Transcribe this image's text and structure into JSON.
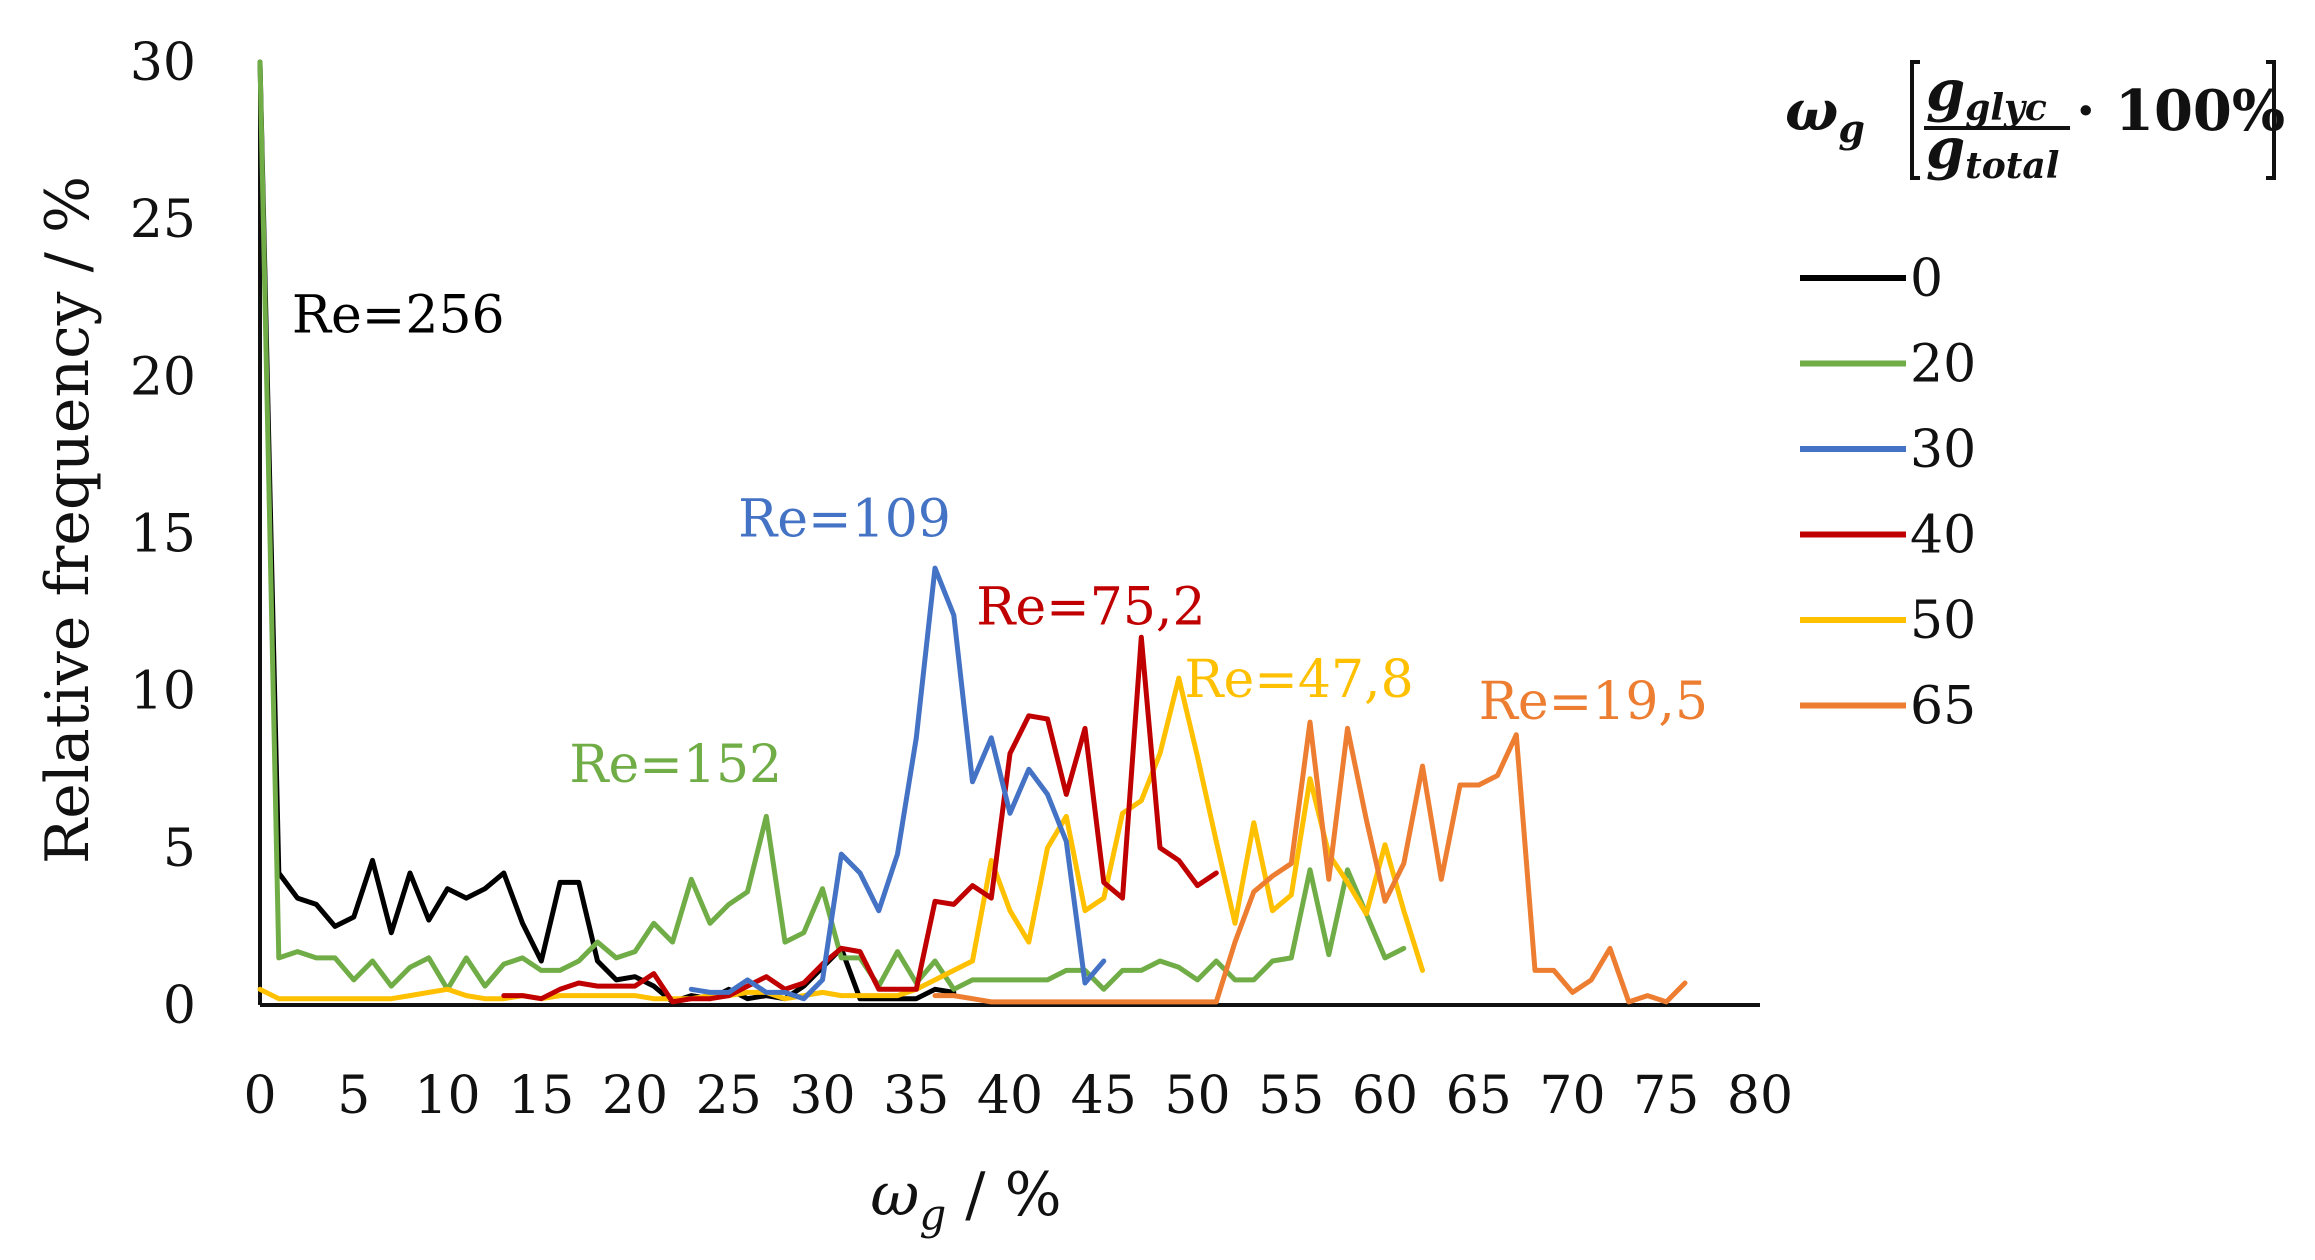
{
  "chart_data": {
    "type": "line",
    "xlabel_main": "ω",
    "xlabel_sub": "g",
    "xlabel_unit": " / %",
    "ylabel": "Relative frequency / %",
    "xlim": [
      0,
      80
    ],
    "ylim": [
      0,
      30
    ],
    "x_ticks": [
      0,
      5,
      10,
      15,
      20,
      25,
      30,
      35,
      40,
      45,
      50,
      55,
      60,
      65,
      70,
      75,
      80
    ],
    "y_ticks": [
      0,
      5,
      10,
      15,
      20,
      25,
      30
    ],
    "legend_title": {
      "symbol": "ω",
      "symbol_sub": "g",
      "numerator": "g",
      "numerator_sub": "glyc",
      "denominator": "g",
      "denominator_sub": "total",
      "multiplier": "· 100%"
    },
    "series": [
      {
        "name": "0",
        "color": "#000000",
        "x": [
          0,
          1,
          2,
          3,
          4,
          5,
          6,
          7,
          8,
          9,
          10,
          11,
          12,
          13,
          14,
          15,
          16,
          17,
          18,
          19,
          20,
          21,
          22,
          23,
          24,
          25,
          26,
          27,
          28,
          29,
          30,
          31,
          32,
          33,
          34,
          35,
          36,
          37
        ],
        "values": [
          30,
          4.2,
          3.4,
          3.2,
          2.5,
          2.8,
          4.6,
          2.3,
          4.2,
          2.7,
          3.7,
          3.4,
          3.7,
          4.2,
          2.6,
          1.4,
          3.9,
          3.9,
          1.4,
          0.8,
          0.9,
          0.6,
          0.1,
          0.3,
          0.2,
          0.5,
          0.2,
          0.3,
          0.2,
          0.6,
          1.2,
          1.8,
          0.2,
          0.2,
          0.2,
          0.2,
          0.5,
          0.4
        ]
      },
      {
        "name": "20",
        "color": "#70AD47",
        "x": [
          0,
          1,
          2,
          3,
          4,
          5,
          6,
          7,
          8,
          9,
          10,
          11,
          12,
          13,
          14,
          15,
          16,
          17,
          18,
          19,
          20,
          21,
          22,
          23,
          24,
          25,
          26,
          27,
          28,
          29,
          30,
          31,
          32,
          33,
          34,
          35,
          36,
          37,
          38,
          39,
          40,
          41,
          42,
          43,
          44,
          45,
          46,
          47,
          48,
          49,
          50,
          51,
          52,
          53,
          54,
          55,
          56,
          57,
          58,
          59,
          60,
          61
        ],
        "values": [
          30,
          1.5,
          1.7,
          1.5,
          1.5,
          0.8,
          1.4,
          0.6,
          1.2,
          1.5,
          0.5,
          1.5,
          0.6,
          1.3,
          1.5,
          1.1,
          1.1,
          1.4,
          2.0,
          1.5,
          1.7,
          2.6,
          2.0,
          4.0,
          2.6,
          3.2,
          3.6,
          6.0,
          2.0,
          2.3,
          3.7,
          1.5,
          1.5,
          0.6,
          1.7,
          0.7,
          1.4,
          0.5,
          0.8,
          0.8,
          0.8,
          0.8,
          0.8,
          1.1,
          1.1,
          0.5,
          1.1,
          1.1,
          1.4,
          1.2,
          0.8,
          1.4,
          0.8,
          0.8,
          1.4,
          1.5,
          4.3,
          1.6,
          4.3,
          2.9,
          1.5,
          1.8
        ]
      },
      {
        "name": "30",
        "color": "#4472C4",
        "x": [
          23,
          24,
          25,
          26,
          27,
          28,
          29,
          30,
          31,
          32,
          33,
          34,
          35,
          36,
          37,
          38,
          39,
          40,
          41,
          42,
          43,
          44,
          45
        ],
        "values": [
          0.5,
          0.4,
          0.4,
          0.8,
          0.4,
          0.4,
          0.2,
          0.8,
          4.8,
          4.2,
          3.0,
          4.8,
          8.5,
          13.9,
          12.4,
          7.1,
          8.5,
          6.1,
          7.5,
          6.7,
          5.2,
          0.7,
          1.4
        ]
      },
      {
        "name": "40",
        "color": "#C00000",
        "x": [
          13,
          14,
          15,
          16,
          17,
          18,
          19,
          20,
          21,
          22,
          23,
          24,
          25,
          26,
          27,
          28,
          29,
          30,
          31,
          32,
          33,
          34,
          35,
          36,
          37,
          38,
          39,
          40,
          41,
          42,
          43,
          44,
          45,
          46,
          47,
          48,
          49,
          50,
          51
        ],
        "values": [
          0.3,
          0.3,
          0.2,
          0.5,
          0.7,
          0.6,
          0.6,
          0.6,
          1.0,
          0.1,
          0.2,
          0.2,
          0.3,
          0.6,
          0.9,
          0.5,
          0.7,
          1.3,
          1.8,
          1.7,
          0.5,
          0.5,
          0.5,
          3.3,
          3.2,
          3.8,
          3.4,
          8.0,
          9.2,
          9.1,
          6.7,
          8.8,
          3.9,
          3.4,
          11.7,
          5.0,
          4.6,
          3.8,
          4.2
        ]
      },
      {
        "name": "50",
        "color": "#FFC000",
        "x": [
          0,
          1,
          2,
          3,
          4,
          5,
          6,
          7,
          8,
          9,
          10,
          11,
          12,
          13,
          14,
          15,
          16,
          17,
          18,
          19,
          20,
          21,
          22,
          23,
          24,
          25,
          26,
          27,
          28,
          29,
          30,
          31,
          32,
          33,
          34,
          35,
          36,
          37,
          38,
          39,
          40,
          41,
          42,
          43,
          44,
          45,
          46,
          47,
          48,
          49,
          50,
          51,
          52,
          53,
          54,
          55,
          56,
          57,
          58,
          59,
          60,
          61,
          62
        ],
        "values": [
          0.5,
          0.2,
          0.2,
          0.2,
          0.2,
          0.2,
          0.2,
          0.2,
          0.3,
          0.4,
          0.5,
          0.3,
          0.2,
          0.2,
          0.3,
          0.2,
          0.3,
          0.3,
          0.3,
          0.3,
          0.3,
          0.2,
          0.2,
          0.2,
          0.3,
          0.3,
          0.4,
          0.4,
          0.2,
          0.3,
          0.4,
          0.3,
          0.3,
          0.3,
          0.3,
          0.5,
          0.8,
          1.1,
          1.4,
          4.6,
          3.0,
          2.0,
          5.0,
          6.0,
          3.0,
          3.4,
          6.1,
          6.5,
          8.0,
          10.4,
          7.9,
          5.2,
          2.6,
          5.8,
          3.0,
          3.5,
          7.2,
          4.8,
          3.9,
          2.9,
          5.1,
          3.0,
          1.1
        ]
      },
      {
        "name": "65",
        "color": "#ED7D31",
        "x": [
          36,
          37,
          38,
          39,
          40,
          41,
          42,
          43,
          44,
          45,
          46,
          47,
          48,
          49,
          50,
          51,
          52,
          53,
          54,
          55,
          56,
          57,
          58,
          59,
          60,
          61,
          62,
          63,
          64,
          65,
          66,
          67,
          68,
          69,
          70,
          71,
          72,
          73,
          74,
          75,
          76
        ],
        "values": [
          0.3,
          0.3,
          0.2,
          0.1,
          0.1,
          0.1,
          0.1,
          0.1,
          0.1,
          0.1,
          0.1,
          0.1,
          0.1,
          0.1,
          0.1,
          0.1,
          2.0,
          3.6,
          4.1,
          4.5,
          9.0,
          4.0,
          8.8,
          5.9,
          3.3,
          4.5,
          7.6,
          4.0,
          7.0,
          7.0,
          7.3,
          8.6,
          1.1,
          1.1,
          0.4,
          0.8,
          1.8,
          0.1,
          0.3,
          0.1,
          0.7
        ]
      }
    ],
    "annotations": [
      {
        "text": "Re=256",
        "series": "0",
        "x": 1.7,
        "y": 21.4
      },
      {
        "text": "Re=152",
        "series": "20",
        "x": 16.5,
        "y": 7.1
      },
      {
        "text": "Re=109",
        "series": "30",
        "x": 25.5,
        "y": 14.9
      },
      {
        "text": "Re=75,2",
        "series": "40",
        "x": 38.2,
        "y": 12.1
      },
      {
        "text": "Re=47,8",
        "series": "50",
        "x": 49.3,
        "y": 9.8
      },
      {
        "text": "Re=19,5",
        "series": "65",
        "x": 65.0,
        "y": 9.1
      }
    ]
  }
}
